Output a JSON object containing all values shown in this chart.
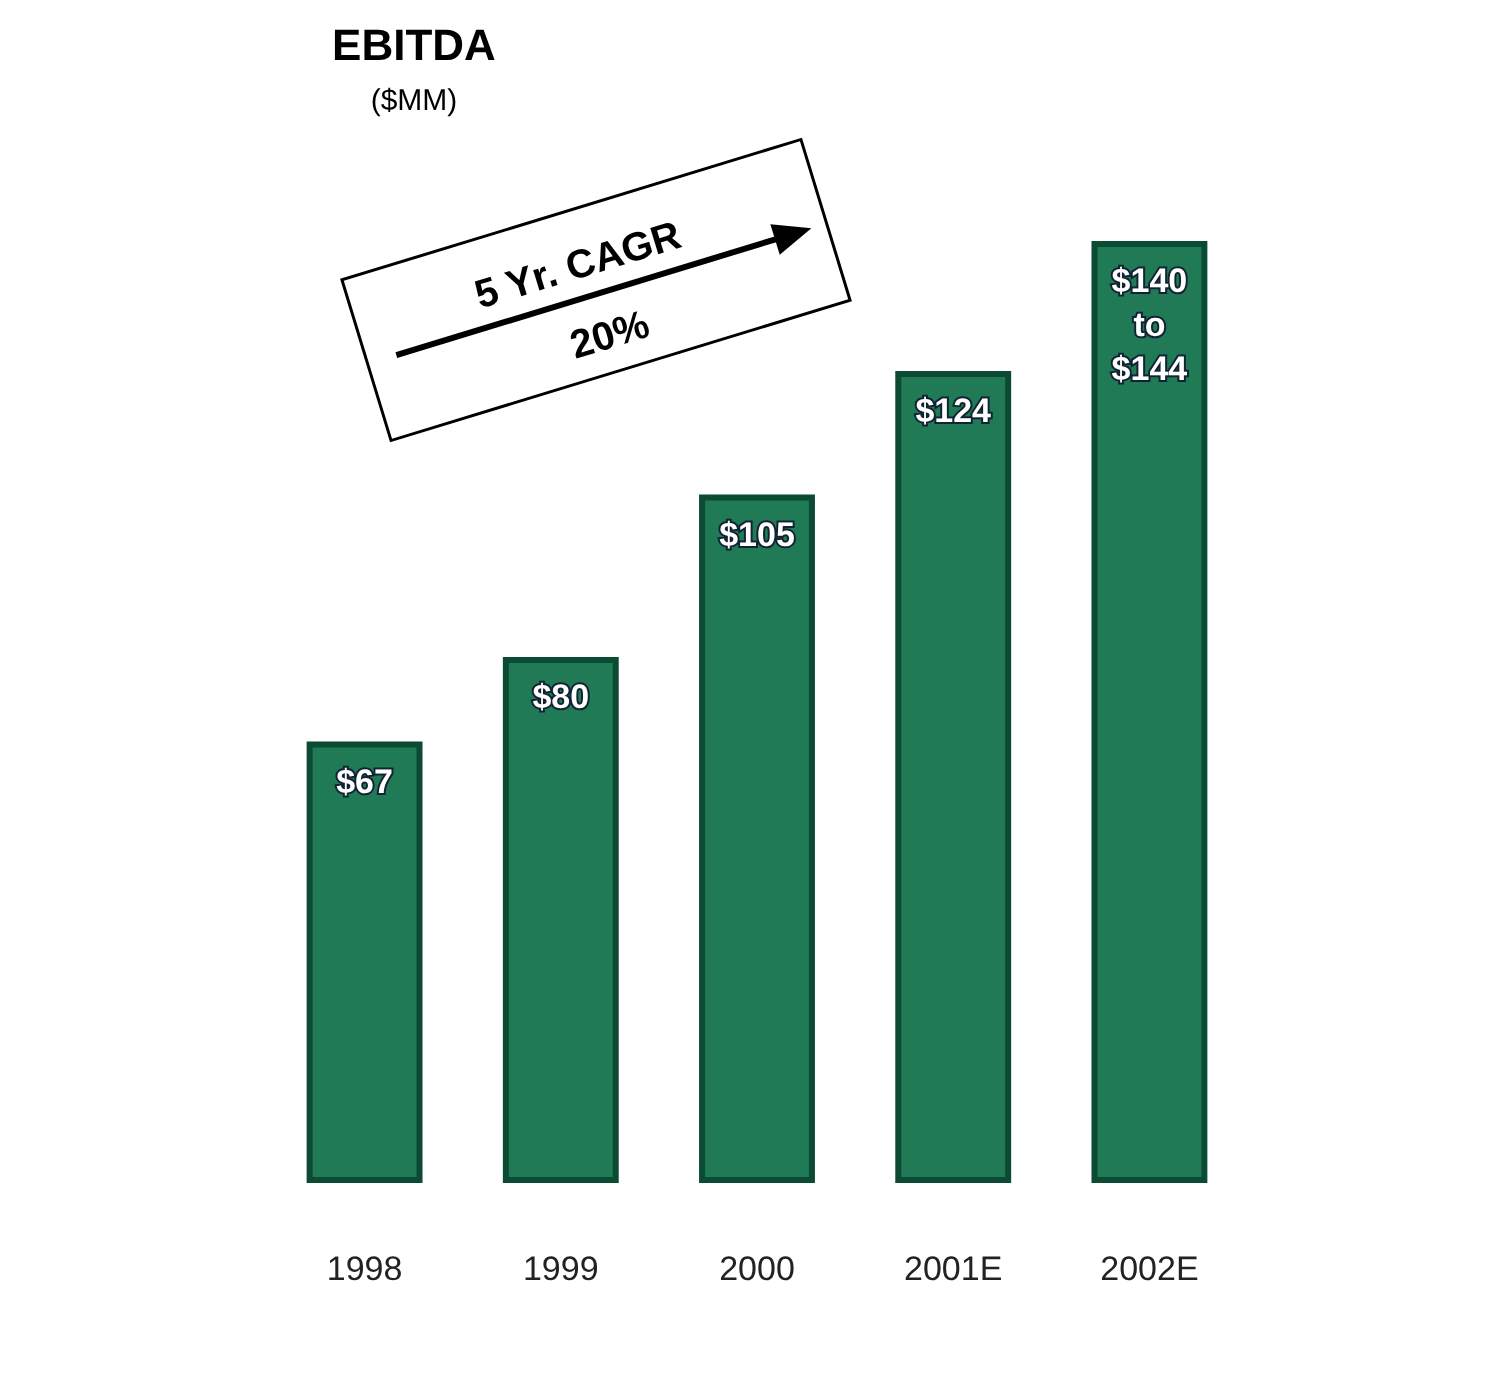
{
  "chart_data": {
    "type": "bar",
    "title": "EBITDA",
    "subtitle": "($MM)",
    "categories": [
      "1998",
      "1999",
      "2000",
      "2001E",
      "2002E"
    ],
    "values": [
      67,
      80,
      105,
      124,
      144
    ],
    "value_labels": [
      "$67",
      "$80",
      "$105",
      "$124",
      "$140 to $144"
    ],
    "color": "#1f7a55",
    "annotations": [
      "5 Yr. CAGR",
      "20%"
    ]
  }
}
